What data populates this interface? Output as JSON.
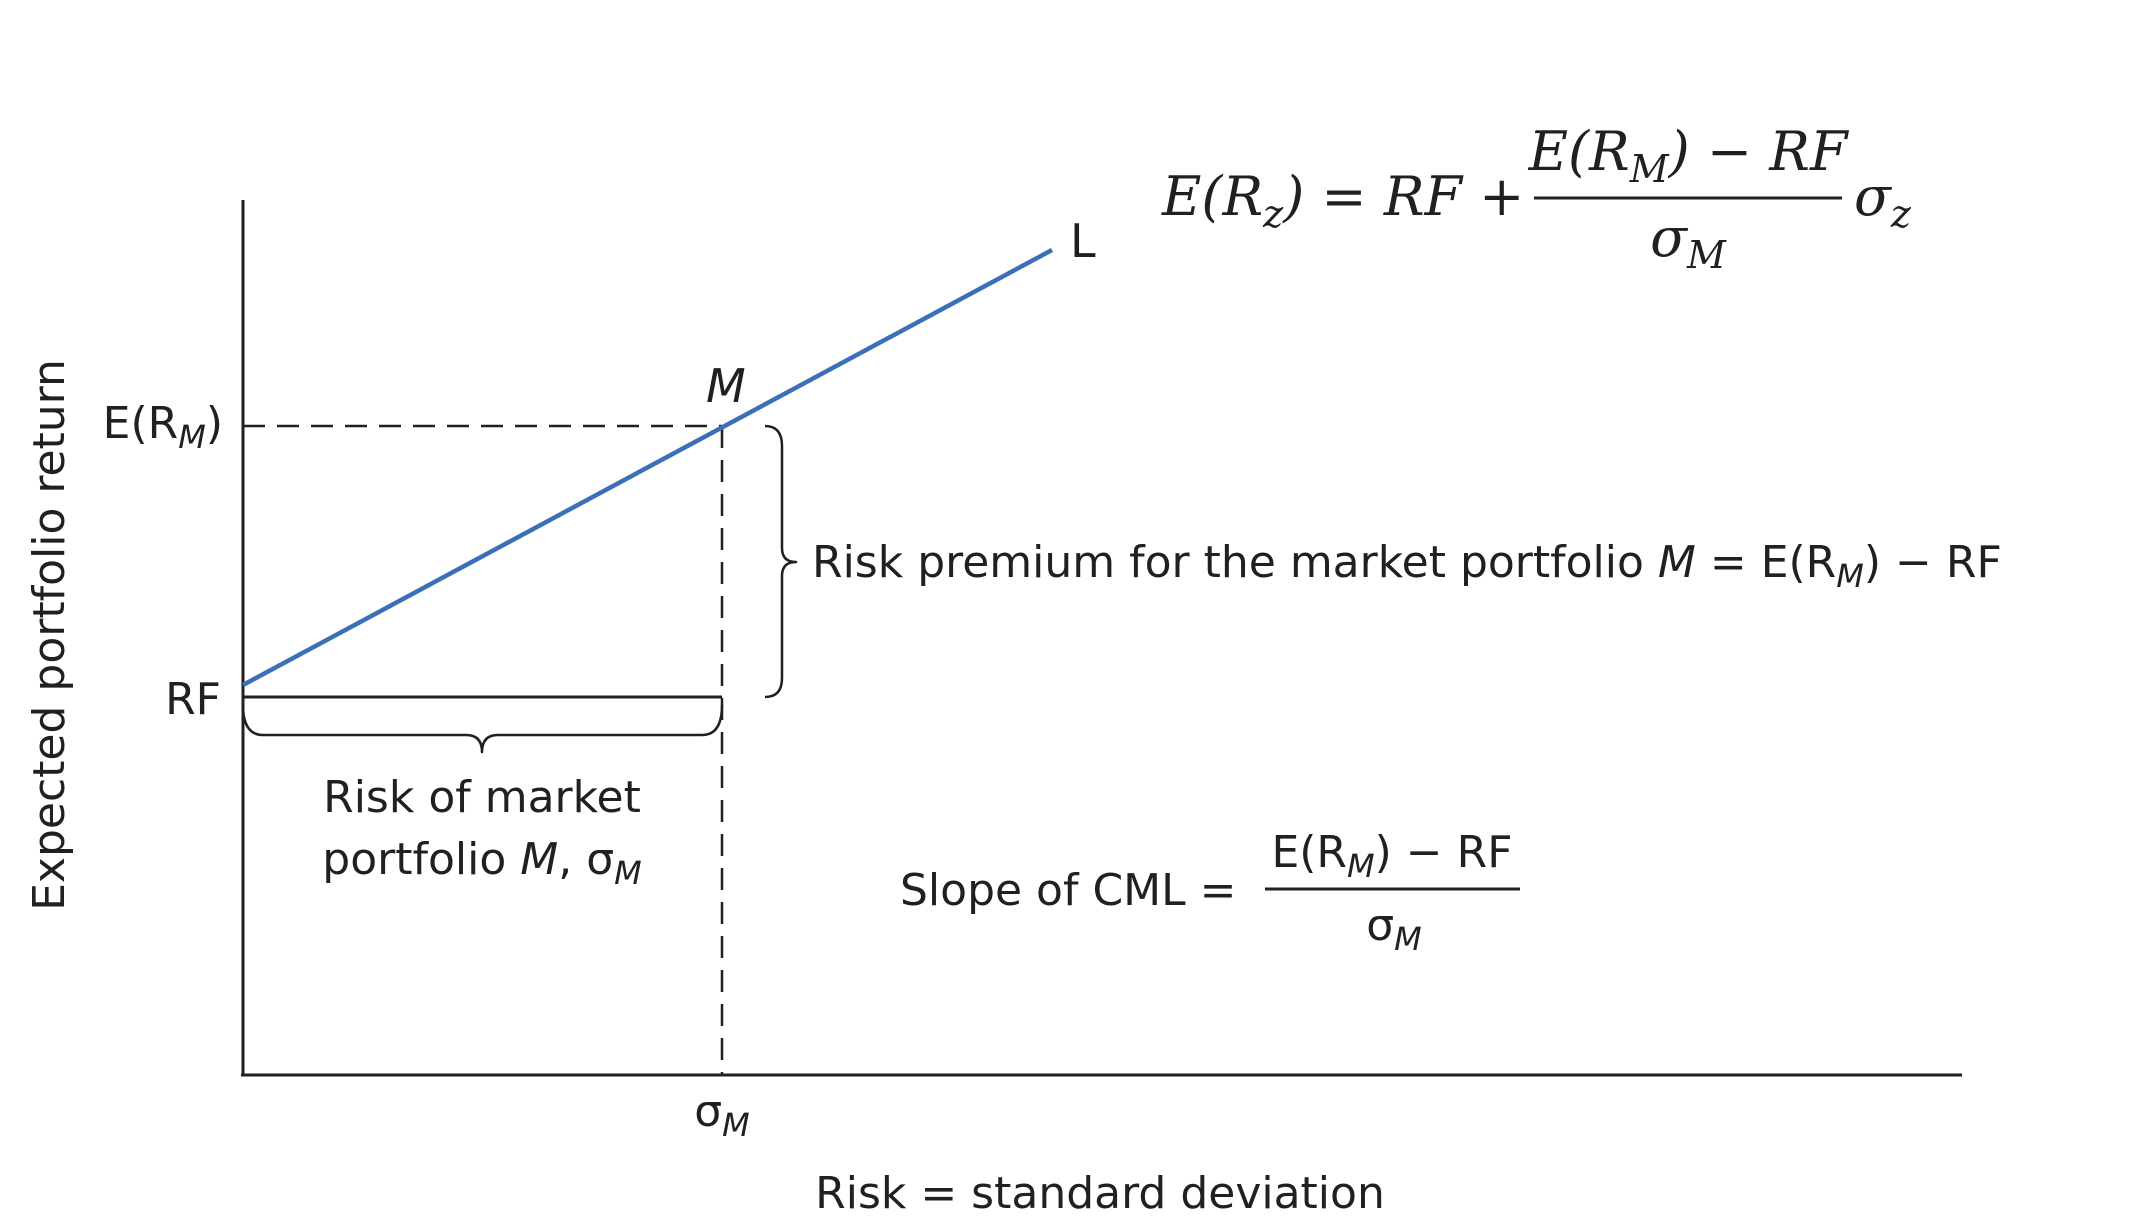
{
  "diagram": {
    "y_axis_label": "Expected portfolio return",
    "x_axis_label": "Risk = standard deviation",
    "line_end_label": "L",
    "market_point_label": "M",
    "tick_sigma_m": {
      "base": "σ",
      "sub": "M"
    },
    "tick_erm": {
      "base": "E(R",
      "sub": "M",
      "close": ")"
    },
    "tick_rf": "RF",
    "risk_premium_label": {
      "prefix": "Risk premium for the market portfolio ",
      "M": "M",
      "equals": " = E(R",
      "sub": "M",
      "suffix": ") − RF"
    },
    "risk_of_market": {
      "line1": "Risk of market",
      "line2_prefix": "portfolio ",
      "line2_M": "M",
      "line2_mid": ", σ",
      "line2_sub": "M"
    },
    "slope": {
      "label": "Slope of CML =",
      "num_prefix": "E(R",
      "num_sub": "M",
      "num_suffix": ") − RF",
      "den_base": "σ",
      "den_sub": "M"
    },
    "formula": {
      "lhs": "E(R",
      "lhs_sub": "z",
      "lhs_rest": ") = RF +",
      "num_prefix": "E(R",
      "num_sub": "M",
      "num_suffix": ") − RF",
      "den_base": "σ",
      "den_sub": "M",
      "tail_base": "σ",
      "tail_sub": "z"
    },
    "colors": {
      "cml_line": "#3a70b8",
      "ink": "#231f20"
    }
  }
}
